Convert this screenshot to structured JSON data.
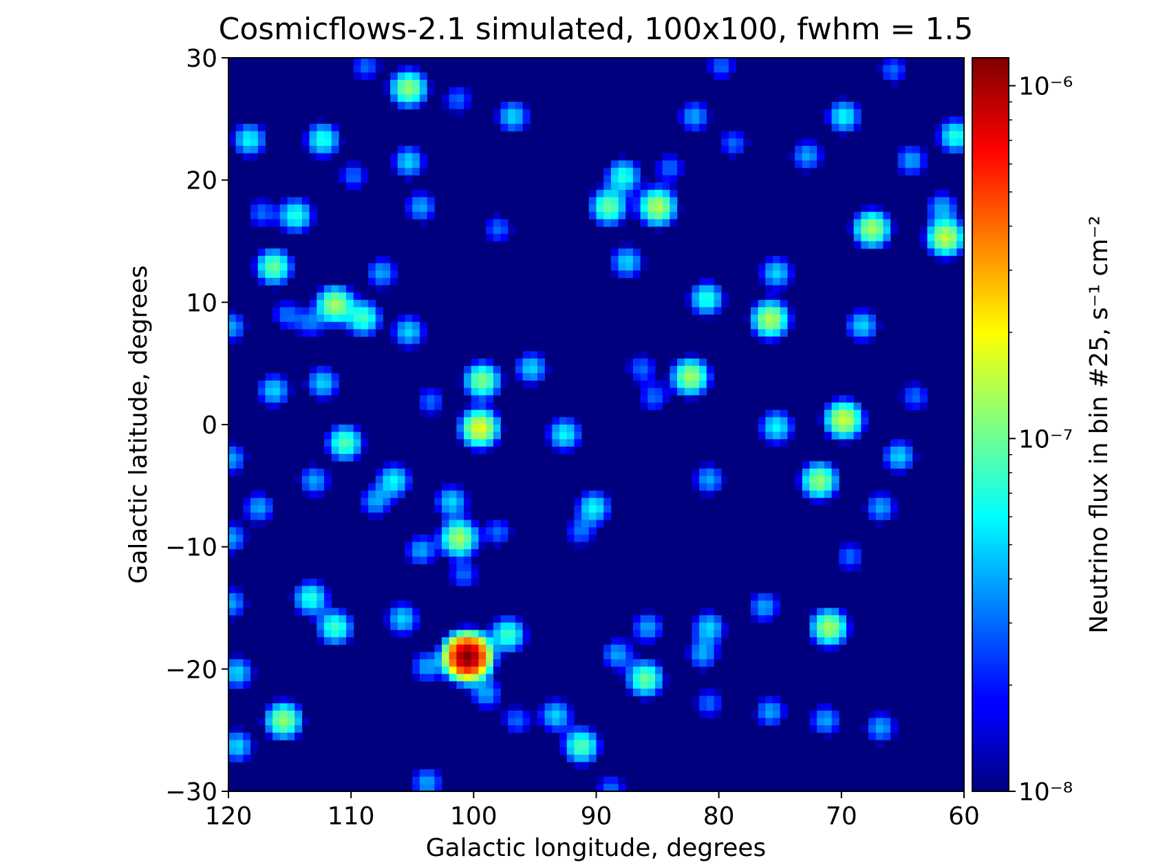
{
  "chart_data": {
    "type": "heatmap",
    "title": "Cosmicflows-2.1 simulated, 100x100, fwhm = 1.5",
    "xlabel": "Galactic longitude, degrees",
    "ylabel": "Galactic latitude, degrees",
    "xlim": [
      120,
      60
    ],
    "ylim": [
      -30,
      30
    ],
    "xticks": [
      "120",
      "110",
      "100",
      "90",
      "80",
      "70",
      "60"
    ],
    "yticks": [
      "30",
      "20",
      "10",
      "0",
      "−10",
      "−20",
      "−30"
    ],
    "grid": false,
    "colormap": "jet",
    "colorscale": "log",
    "background_color": "#00007f",
    "colorbar": {
      "label": "Neutrino flux in bin #25, s⁻¹ cm⁻²",
      "range": [
        1e-08,
        1.2e-06
      ],
      "tick_values": [
        1e-08,
        1e-07,
        1e-06
      ],
      "tick_labels": [
        "10⁻⁸",
        "10⁻⁷",
        "10⁻⁶"
      ]
    },
    "sources": [
      {
        "l": 100.5,
        "b": -19.0,
        "flux": 1.2e-06
      },
      {
        "l": 115.5,
        "b": -24.2,
        "flux": 1.2e-07
      },
      {
        "l": 91.2,
        "b": -26.3,
        "flux": 9e-08
      },
      {
        "l": 86.0,
        "b": -20.8,
        "flux": 1e-07
      },
      {
        "l": 71.0,
        "b": -16.6,
        "flux": 1.3e-07
      },
      {
        "l": 71.8,
        "b": -4.6,
        "flux": 1.2e-07
      },
      {
        "l": 69.8,
        "b": 0.4,
        "flux": 1.6e-07
      },
      {
        "l": 99.5,
        "b": -0.3,
        "flux": 1.8e-07
      },
      {
        "l": 99.3,
        "b": 3.6,
        "flux": 1.1e-07
      },
      {
        "l": 101.2,
        "b": -9.3,
        "flux": 1.3e-07
      },
      {
        "l": 111.3,
        "b": 9.8,
        "flux": 1.3e-07
      },
      {
        "l": 109.0,
        "b": 8.7,
        "flux": 8e-08
      },
      {
        "l": 75.8,
        "b": 8.6,
        "flux": 1.4e-07
      },
      {
        "l": 82.3,
        "b": 3.9,
        "flux": 1.3e-07
      },
      {
        "l": 85.0,
        "b": 17.8,
        "flux": 1.4e-07
      },
      {
        "l": 89.0,
        "b": 17.8,
        "flux": 1e-07
      },
      {
        "l": 67.5,
        "b": 16.0,
        "flux": 1.3e-07
      },
      {
        "l": 61.5,
        "b": 15.3,
        "flux": 1.5e-07
      },
      {
        "l": 105.3,
        "b": 27.5,
        "flux": 1.2e-07
      },
      {
        "l": 116.3,
        "b": 12.9,
        "flux": 1e-07
      },
      {
        "l": 114.5,
        "b": 17.1,
        "flux": 7e-08
      },
      {
        "l": 110.5,
        "b": -1.5,
        "flux": 9e-08
      },
      {
        "l": 113.3,
        "b": -14.2,
        "flux": 7e-08
      },
      {
        "l": 111.3,
        "b": -16.6,
        "flux": 8e-08
      },
      {
        "l": 97.2,
        "b": -17.2,
        "flux": 8e-08
      },
      {
        "l": 90.2,
        "b": -6.8,
        "flux": 6e-08
      },
      {
        "l": 81.0,
        "b": 10.3,
        "flux": 7e-08
      },
      {
        "l": 75.3,
        "b": 12.4,
        "flux": 5e-08
      },
      {
        "l": 87.8,
        "b": 20.3,
        "flux": 7e-08
      },
      {
        "l": 87.5,
        "b": 13.3,
        "flux": 5e-08
      },
      {
        "l": 69.8,
        "b": 25.2,
        "flux": 6e-08
      },
      {
        "l": 60.7,
        "b": 23.6,
        "flux": 7e-08
      },
      {
        "l": 112.3,
        "b": 23.3,
        "flux": 7e-08
      },
      {
        "l": 118.3,
        "b": 23.3,
        "flux": 6e-08
      },
      {
        "l": 105.3,
        "b": 21.5,
        "flux": 5e-08
      },
      {
        "l": 106.5,
        "b": -4.6,
        "flux": 6e-08
      },
      {
        "l": 92.6,
        "b": -0.8,
        "flux": 6e-08
      },
      {
        "l": 75.3,
        "b": -0.2,
        "flux": 6e-08
      },
      {
        "l": 68.3,
        "b": 8.1,
        "flux": 5e-08
      },
      {
        "l": 105.3,
        "b": 7.6,
        "flux": 5e-08
      },
      {
        "l": 112.3,
        "b": 3.4,
        "flux": 5e-08
      },
      {
        "l": 116.3,
        "b": 2.8,
        "flux": 5e-08
      },
      {
        "l": 101.8,
        "b": -6.3,
        "flux": 5e-08
      },
      {
        "l": 93.3,
        "b": -23.8,
        "flux": 5e-08
      },
      {
        "l": 105.8,
        "b": -15.9,
        "flux": 5e-08
      },
      {
        "l": 80.8,
        "b": -16.6,
        "flux": 5e-08
      },
      {
        "l": 76.3,
        "b": -14.9,
        "flux": 4e-08
      },
      {
        "l": 81.3,
        "b": -18.8,
        "flux": 4e-08
      },
      {
        "l": 80.8,
        "b": -4.5,
        "flux": 4e-08
      },
      {
        "l": 119.3,
        "b": -20.3,
        "flux": 5e-08
      },
      {
        "l": 119.3,
        "b": -26.3,
        "flux": 5e-08
      },
      {
        "l": 103.8,
        "b": -29.3,
        "flux": 4e-08
      },
      {
        "l": 66.8,
        "b": -24.8,
        "flux": 4e-08
      },
      {
        "l": 66.8,
        "b": -6.8,
        "flux": 4e-08
      },
      {
        "l": 65.3,
        "b": -2.6,
        "flux": 5e-08
      },
      {
        "l": 95.3,
        "b": 4.6,
        "flux": 5e-08
      },
      {
        "l": 96.8,
        "b": 25.2,
        "flux": 5e-08
      },
      {
        "l": 82.0,
        "b": 25.2,
        "flux": 4e-08
      },
      {
        "l": 72.8,
        "b": 22.0,
        "flux": 4e-08
      },
      {
        "l": 108.0,
        "b": -6.3,
        "flux": 4e-08
      },
      {
        "l": 104.3,
        "b": 17.8,
        "flux": 4e-08
      },
      {
        "l": 107.5,
        "b": 12.4,
        "flux": 4e-08
      },
      {
        "l": 113.0,
        "b": -4.6,
        "flux": 4e-08
      },
      {
        "l": 117.5,
        "b": -6.8,
        "flux": 4e-08
      },
      {
        "l": 119.8,
        "b": 8.0,
        "flux": 4e-08
      },
      {
        "l": 119.8,
        "b": -2.8,
        "flux": 4e-08
      },
      {
        "l": 119.8,
        "b": -9.3,
        "flux": 4e-08
      },
      {
        "l": 119.8,
        "b": -14.6,
        "flux": 4e-08
      },
      {
        "l": 104.3,
        "b": -10.3,
        "flux": 4e-08
      },
      {
        "l": 103.8,
        "b": -19.8,
        "flux": 4e-08
      },
      {
        "l": 99.0,
        "b": -22.0,
        "flux": 4e-08
      },
      {
        "l": 96.5,
        "b": -24.2,
        "flux": 3e-08
      },
      {
        "l": 88.3,
        "b": -18.8,
        "flux": 4e-08
      },
      {
        "l": 85.8,
        "b": -16.6,
        "flux": 4e-08
      },
      {
        "l": 84.0,
        "b": 21.0,
        "flux": 3e-08
      },
      {
        "l": 98.0,
        "b": 16.0,
        "flux": 3e-08
      },
      {
        "l": 71.3,
        "b": -24.2,
        "flux": 4e-08
      },
      {
        "l": 75.8,
        "b": -23.5,
        "flux": 4e-08
      },
      {
        "l": 80.8,
        "b": -22.8,
        "flux": 3e-08
      },
      {
        "l": 61.8,
        "b": 17.8,
        "flux": 4e-08
      },
      {
        "l": 64.3,
        "b": 21.6,
        "flux": 4e-08
      },
      {
        "l": 115.3,
        "b": 9.0,
        "flux": 3e-08
      },
      {
        "l": 113.3,
        "b": 8.3,
        "flux": 3e-08
      },
      {
        "l": 79.8,
        "b": 29.3,
        "flux": 3e-08
      },
      {
        "l": 65.8,
        "b": 29.0,
        "flux": 3e-08
      },
      {
        "l": 108.8,
        "b": 29.3,
        "flux": 3e-08
      },
      {
        "l": 88.8,
        "b": -29.8,
        "flux": 3e-08
      },
      {
        "l": 86.3,
        "b": 4.6,
        "flux": 3e-08
      },
      {
        "l": 85.3,
        "b": 2.2,
        "flux": 3e-08
      },
      {
        "l": 91.3,
        "b": -8.8,
        "flux": 3e-08
      },
      {
        "l": 100.8,
        "b": -12.3,
        "flux": 3e-08
      },
      {
        "l": 98.0,
        "b": -8.8,
        "flux": 3e-08
      },
      {
        "l": 103.5,
        "b": 1.9,
        "flux": 3e-08
      },
      {
        "l": 78.8,
        "b": 23.0,
        "flux": 3e-08
      },
      {
        "l": 69.3,
        "b": -10.8,
        "flux": 3e-08
      },
      {
        "l": 117.3,
        "b": 17.3,
        "flux": 3e-08
      },
      {
        "l": 109.8,
        "b": 20.3,
        "flux": 3e-08
      },
      {
        "l": 101.3,
        "b": 26.6,
        "flux": 3e-08
      },
      {
        "l": 64.0,
        "b": 2.3,
        "flux": 3e-08
      }
    ]
  }
}
